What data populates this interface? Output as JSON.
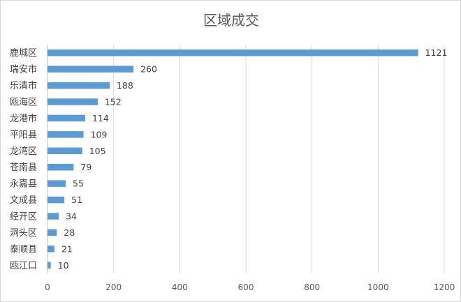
{
  "chart_data": {
    "type": "bar",
    "orientation": "horizontal",
    "title": "区域成交",
    "categories": [
      "鹿城区",
      "瑞安市",
      "乐清市",
      "瓯海区",
      "龙港市",
      "平阳县",
      "龙湾区",
      "苍南县",
      "永嘉县",
      "文成县",
      "经开区",
      "洞头区",
      "泰顺县",
      "瓯江口"
    ],
    "values": [
      1121,
      260,
      188,
      152,
      114,
      109,
      105,
      79,
      55,
      51,
      34,
      28,
      21,
      10
    ],
    "xlim": [
      0,
      1200
    ],
    "xticks": [
      0,
      200,
      400,
      600,
      800,
      1000,
      1200
    ],
    "grid": true,
    "legend": "none",
    "bar_color": "#5b9bd5"
  }
}
